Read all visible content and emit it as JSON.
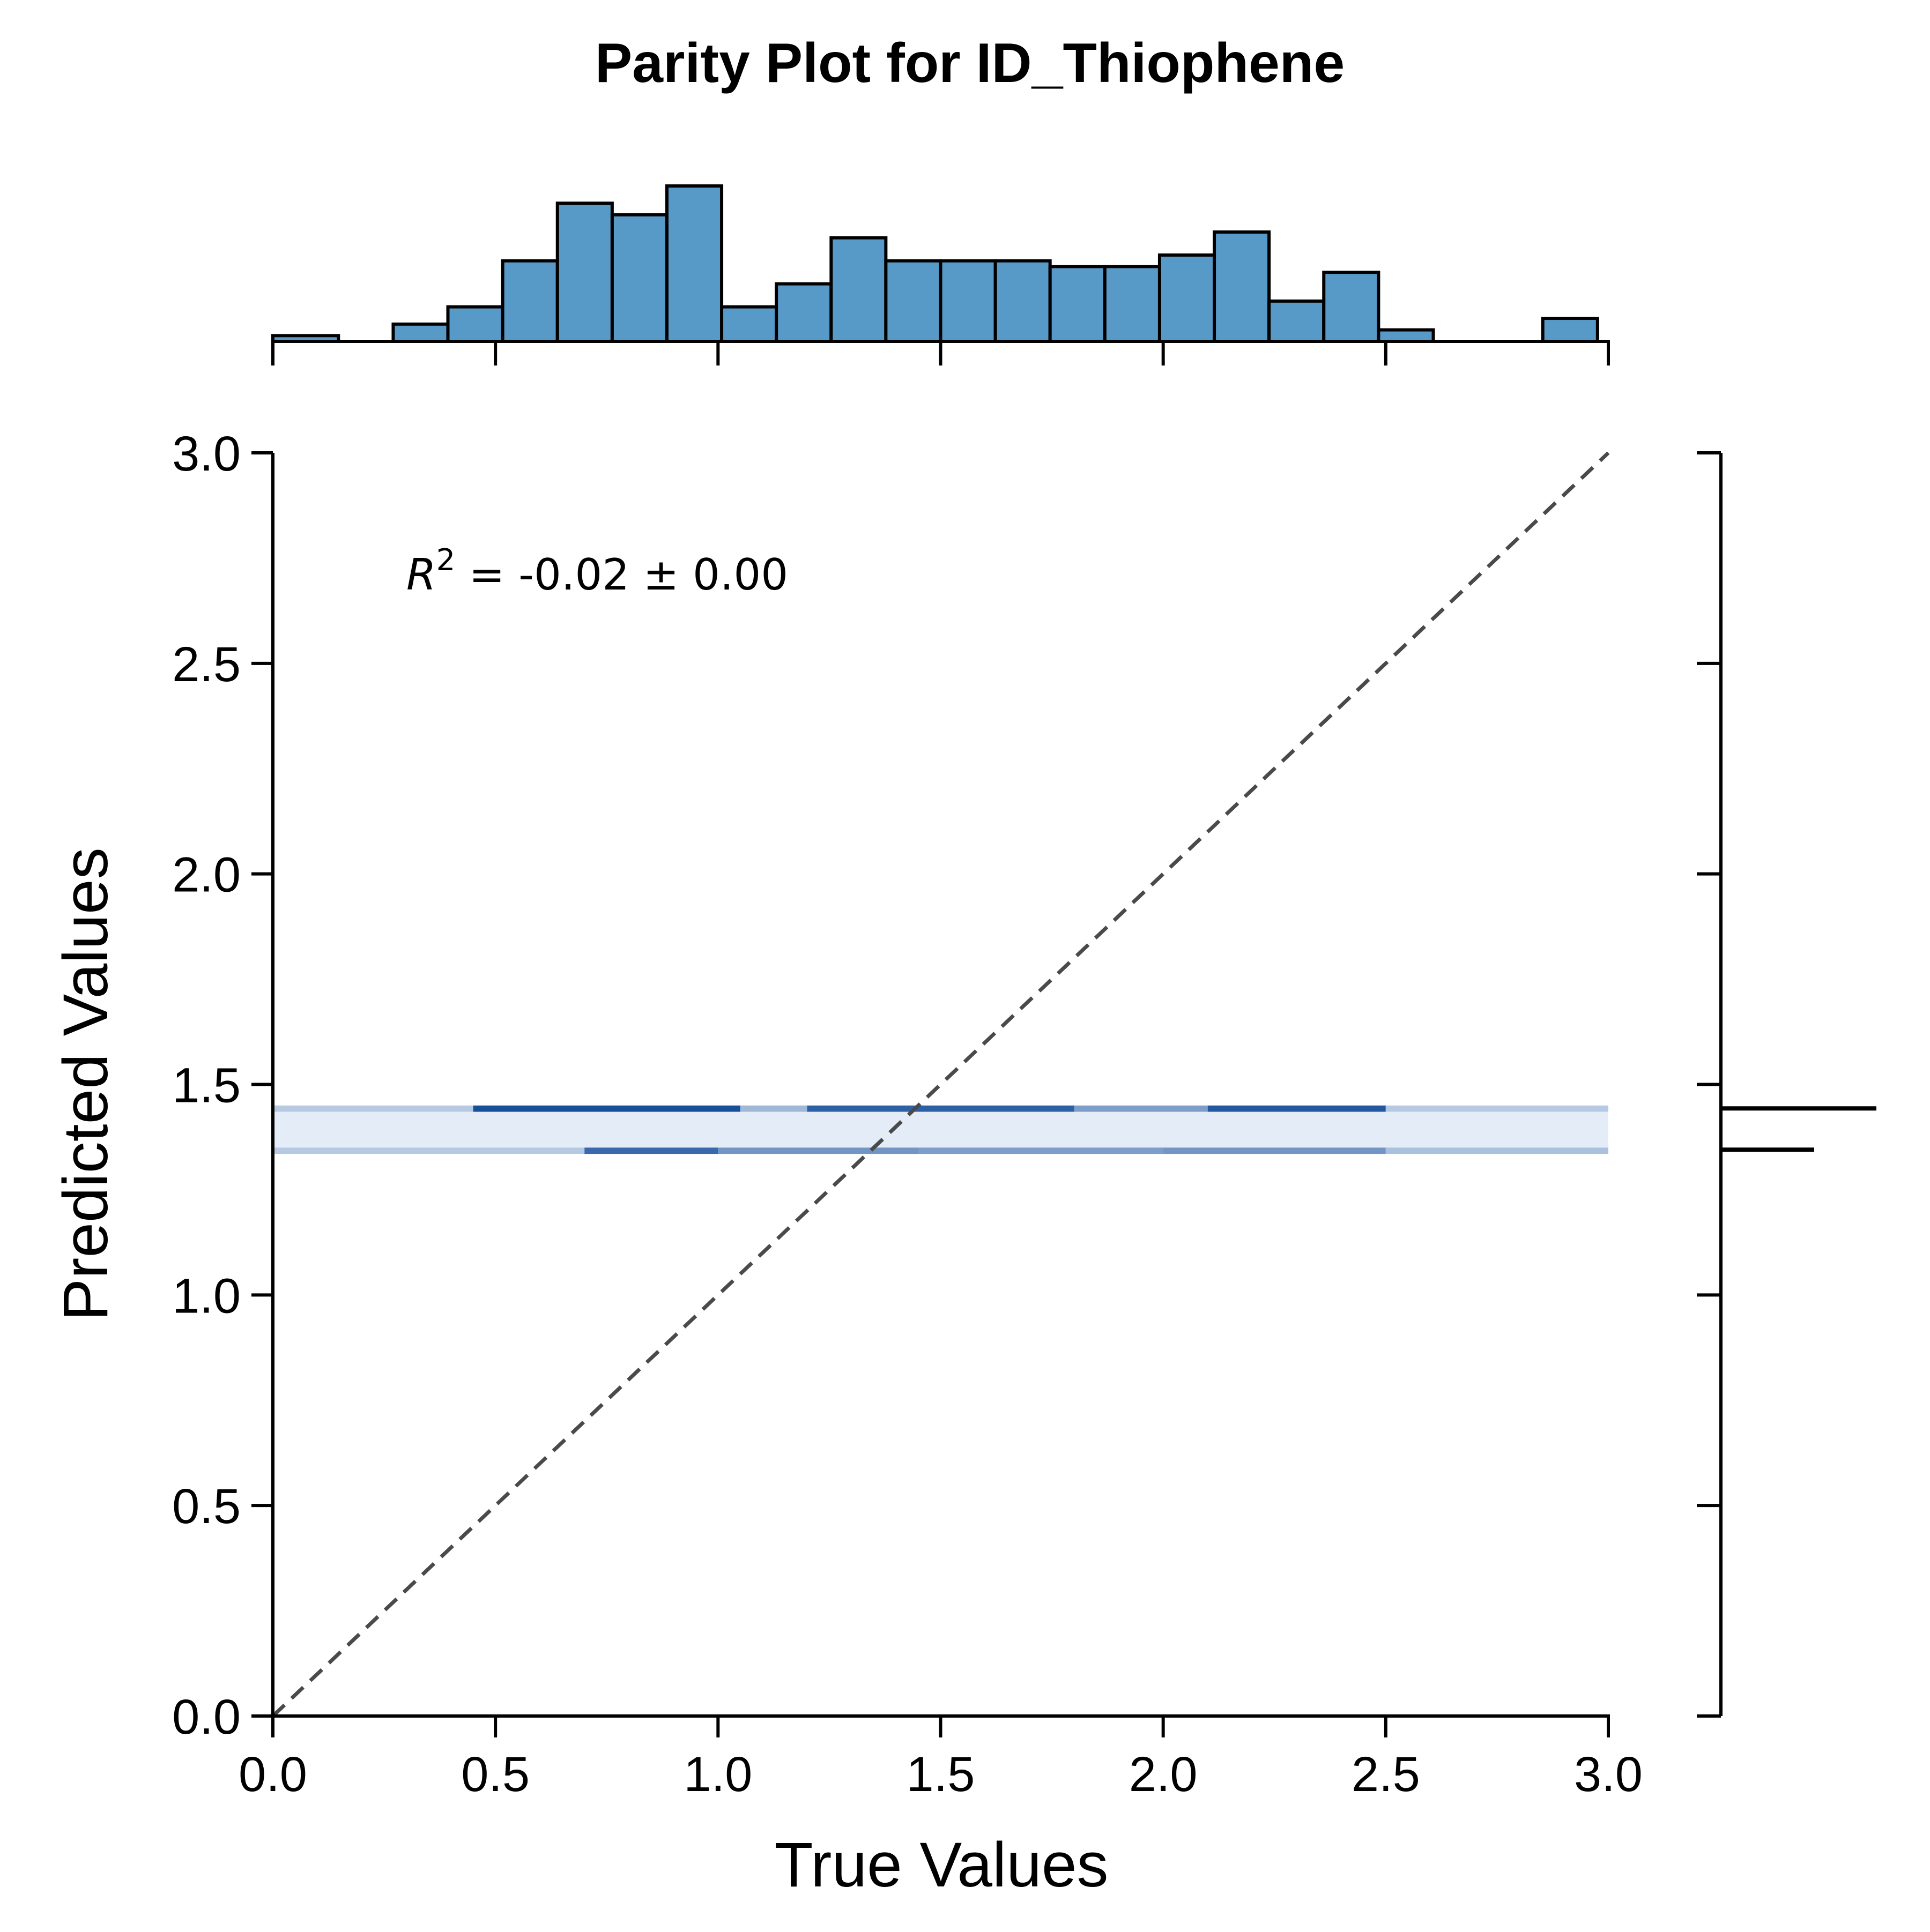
{
  "chart_data": {
    "type": "scatter",
    "title": "Parity Plot for ID_Thiophene",
    "xlabel": "True Values",
    "ylabel": "Predicted Values",
    "xlim": [
      0.0,
      3.0
    ],
    "ylim": [
      0.0,
      3.0
    ],
    "xticks": [
      "0.0",
      "0.5",
      "1.0",
      "1.5",
      "2.0",
      "2.5",
      "3.0"
    ],
    "yticks": [
      "0.0",
      "0.5",
      "1.0",
      "1.5",
      "2.0",
      "2.5",
      "3.0"
    ],
    "annotation": {
      "r2_symbol": "R",
      "r2_exponent": "2",
      "r2_text": " = -0.02 ± 0.00"
    },
    "parity_line": {
      "from": [
        0,
        0
      ],
      "to": [
        3,
        3
      ],
      "style": "dashed",
      "color": "#4a4a4a"
    },
    "density_band": {
      "x_range": [
        0.0,
        3.0
      ],
      "rows": [
        {
          "y_range": [
            1.435,
            1.45
          ],
          "segments": [
            {
              "x": [
                0.0,
                0.45
              ],
              "intensity": 0.25
            },
            {
              "x": [
                0.45,
                1.05
              ],
              "intensity": 0.95
            },
            {
              "x": [
                1.05,
                1.2
              ],
              "intensity": 0.35
            },
            {
              "x": [
                1.2,
                1.8
              ],
              "intensity": 0.85
            },
            {
              "x": [
                1.8,
                2.1
              ],
              "intensity": 0.5
            },
            {
              "x": [
                2.1,
                2.5
              ],
              "intensity": 0.9
            },
            {
              "x": [
                2.5,
                3.0
              ],
              "intensity": 0.25
            }
          ]
        },
        {
          "y_range": [
            1.35,
            1.435
          ],
          "segments": [
            {
              "x": [
                0.0,
                3.0
              ],
              "intensity": 0.05
            }
          ]
        },
        {
          "y_range": [
            1.335,
            1.35
          ],
          "segments": [
            {
              "x": [
                0.0,
                0.7
              ],
              "intensity": 0.25
            },
            {
              "x": [
                0.7,
                1.0
              ],
              "intensity": 0.8
            },
            {
              "x": [
                1.0,
                1.45
              ],
              "intensity": 0.55
            },
            {
              "x": [
                1.45,
                2.0
              ],
              "intensity": 0.5
            },
            {
              "x": [
                2.0,
                2.5
              ],
              "intensity": 0.55
            },
            {
              "x": [
                2.5,
                3.0
              ],
              "intensity": 0.3
            }
          ]
        }
      ]
    },
    "x_histogram": {
      "bin_edges": [
        0.0,
        0.1473,
        0.2703,
        0.3932,
        0.5162,
        0.6392,
        0.7622,
        0.8851,
        1.0081,
        1.1311,
        1.2541,
        1.377,
        1.5,
        1.623,
        1.7459,
        1.8689,
        1.9919,
        2.1149,
        2.2378,
        2.3608,
        2.4838,
        2.6068,
        2.7297,
        2.8527,
        2.9757
      ],
      "counts": [
        1,
        0,
        3,
        6,
        14,
        24,
        22,
        27,
        6,
        10,
        18,
        14,
        14,
        14,
        13,
        13,
        15,
        19,
        7,
        12,
        2,
        0,
        0,
        4
      ],
      "color": "#5799c7",
      "edge_color": "#000000"
    },
    "y_marginal": {
      "bars": [
        {
          "y": 1.443,
          "length": 1.0
        },
        {
          "y": 1.345,
          "length": 0.6
        }
      ],
      "color": "#000000"
    }
  }
}
